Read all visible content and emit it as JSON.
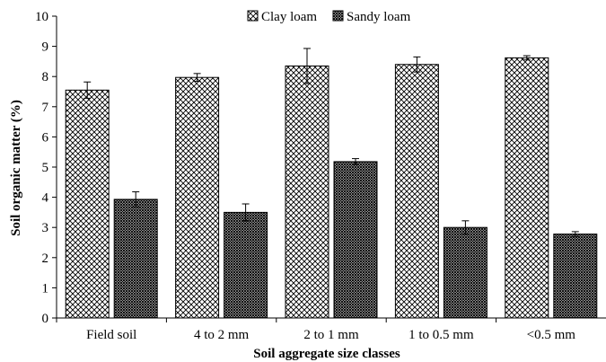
{
  "chart_data": {
    "type": "bar",
    "title": "",
    "xlabel": "Soil aggregate size classes",
    "ylabel": "Soil organic matter (%)",
    "ylim": [
      0,
      10
    ],
    "yticks": [
      0,
      1,
      2,
      3,
      4,
      5,
      6,
      7,
      8,
      9,
      10
    ],
    "grid": false,
    "legend_position": "top-center",
    "categories": [
      "Field soil",
      "4 to 2 mm",
      "2 to 1 mm",
      "1 to 0.5 mm",
      "<0.5 mm"
    ],
    "series": [
      {
        "name": "Clay loam",
        "pattern": "crosshatch",
        "color": "#000000",
        "values": [
          7.55,
          7.97,
          8.35,
          8.4,
          8.62
        ],
        "errors": [
          0.27,
          0.13,
          0.58,
          0.25,
          0.07
        ]
      },
      {
        "name": "Sandy loam",
        "pattern": "dense-grid",
        "color": "#000000",
        "values": [
          3.93,
          3.5,
          5.18,
          3.0,
          2.78
        ],
        "errors": [
          0.25,
          0.28,
          0.1,
          0.22,
          0.08
        ]
      }
    ]
  }
}
